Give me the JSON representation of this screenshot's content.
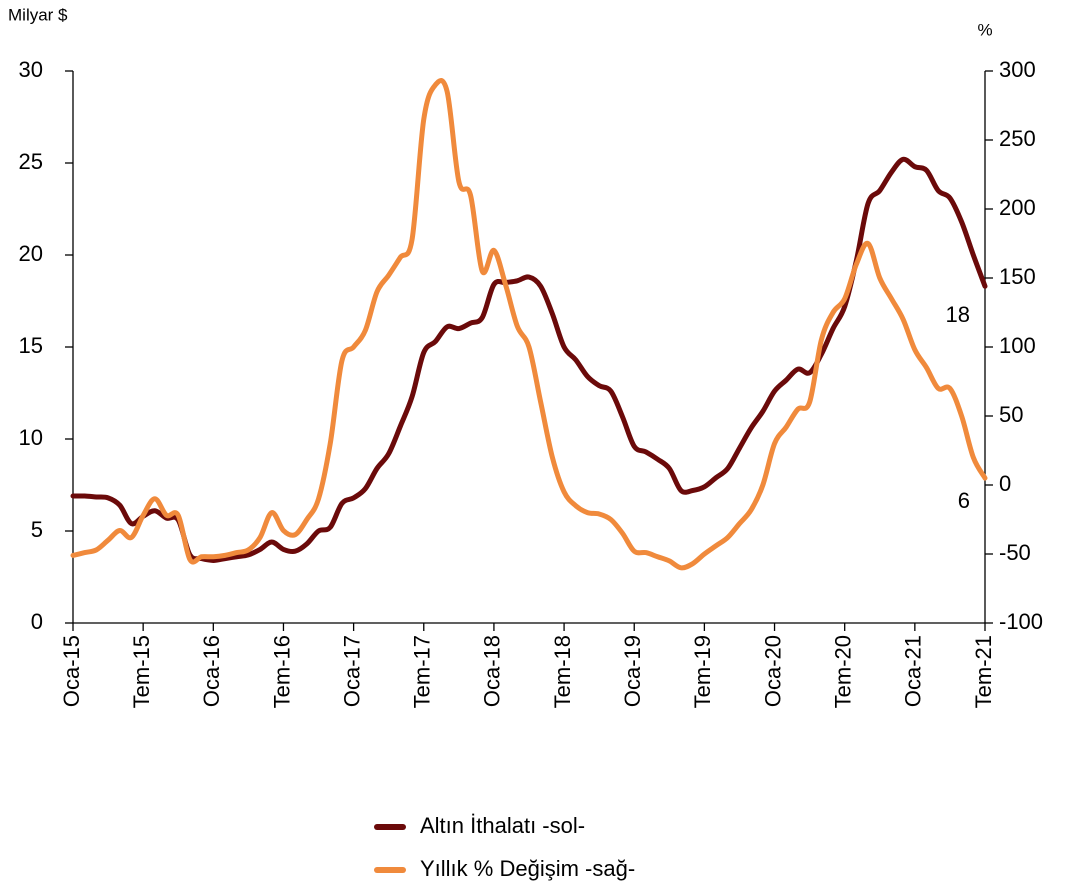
{
  "chart_data": {
    "type": "line",
    "y_label": "Milyar $",
    "y2_label": "%",
    "categories": [
      "Oca-15",
      null,
      null,
      null,
      null,
      null,
      "Tem-15",
      null,
      null,
      null,
      null,
      null,
      "Oca-16",
      null,
      null,
      null,
      null,
      null,
      "Tem-16",
      null,
      null,
      null,
      null,
      null,
      "Oca-17",
      null,
      null,
      null,
      null,
      null,
      "Tem-17",
      null,
      null,
      null,
      null,
      null,
      "Oca-18",
      null,
      null,
      null,
      null,
      null,
      "Tem-18",
      null,
      null,
      null,
      null,
      null,
      "Oca-19",
      null,
      null,
      null,
      null,
      null,
      "Tem-19",
      null,
      null,
      null,
      null,
      null,
      "Oca-20",
      null,
      null,
      null,
      null,
      null,
      "Tem-20",
      null,
      null,
      null,
      null,
      null,
      "Oca-21",
      null,
      null,
      null,
      null,
      null,
      "Tem-21"
    ],
    "series": [
      {
        "name": "Altın İthalatı -sol-",
        "color": "#6b0a0a",
        "axis": "y",
        "values": [
          6.9,
          6.9,
          6.85,
          6.8,
          6.4,
          5.4,
          5.8,
          6.1,
          5.7,
          5.6,
          3.7,
          3.5,
          3.4,
          3.5,
          3.6,
          3.7,
          4.0,
          4.4,
          4.0,
          3.9,
          4.3,
          5.0,
          5.2,
          6.5,
          6.8,
          7.3,
          8.4,
          9.2,
          10.7,
          12.3,
          14.7,
          15.3,
          16.1,
          16.0,
          16.3,
          16.6,
          18.4,
          18.5,
          18.6,
          18.8,
          18.3,
          16.8,
          15.0,
          14.3,
          13.4,
          12.9,
          12.6,
          11.2,
          9.6,
          9.3,
          8.9,
          8.4,
          7.2,
          7.2,
          7.4,
          7.9,
          8.4,
          9.5,
          10.6,
          11.5,
          12.6,
          13.2,
          13.8,
          13.6,
          14.6,
          16.0,
          17.2,
          19.7,
          22.8,
          23.5,
          24.5,
          25.2,
          24.8,
          24.6,
          23.5,
          23.1,
          21.8,
          20.0,
          18.3
        ]
      },
      {
        "name": "Yıllık % Değişim -sağ-",
        "color": "#f08a3c",
        "axis": "y2",
        "values": [
          -51,
          -49,
          -47,
          -40,
          -33,
          -38,
          -22,
          -10,
          -22,
          -22,
          -54,
          -52,
          -52,
          -51,
          -49,
          -47,
          -38,
          -20,
          -33,
          -36,
          -25,
          -10,
          30,
          90,
          100,
          112,
          140,
          152,
          165,
          178,
          265,
          290,
          285,
          220,
          210,
          155,
          170,
          145,
          115,
          100,
          60,
          20,
          -5,
          -15,
          -20,
          -21,
          -25,
          -35,
          -48,
          -49,
          -52,
          -55,
          -60,
          -57,
          -50,
          -44,
          -38,
          -28,
          -18,
          0,
          30,
          42,
          55,
          60,
          105,
          125,
          135,
          160,
          175,
          150,
          135,
          120,
          98,
          85,
          70,
          70,
          50,
          20,
          5
        ]
      }
    ],
    "annotations": [
      {
        "text": "18",
        "series": 0
      },
      {
        "text": "6",
        "series": 1
      }
    ],
    "ylim": [
      0,
      30
    ],
    "yticks": [
      0,
      5,
      10,
      15,
      20,
      25,
      30
    ],
    "y2lim": [
      -100,
      300
    ],
    "y2ticks": [
      -100,
      -50,
      0,
      50,
      100,
      150,
      200,
      250,
      300
    ],
    "legend": "bottom"
  }
}
